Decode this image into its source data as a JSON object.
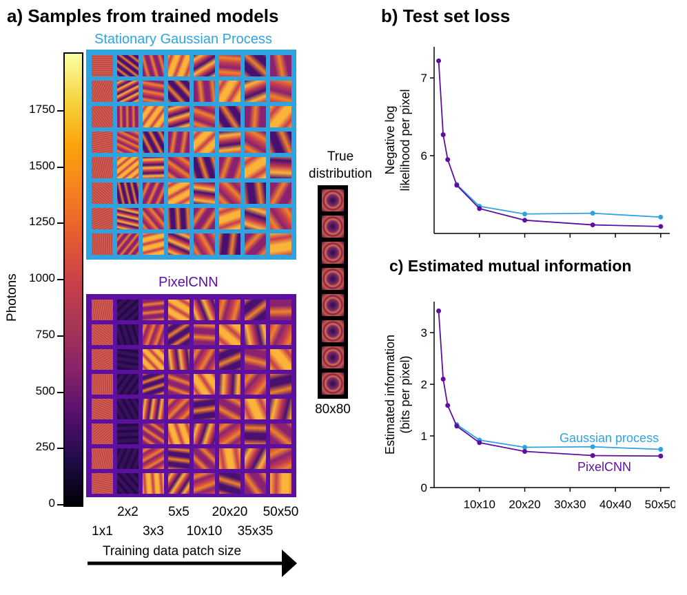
{
  "panel_a": {
    "title": "a) Samples from trained models",
    "colorbar": {
      "label": "Photons",
      "ticks": [
        "0",
        "250",
        "500",
        "750",
        "1000",
        "1250",
        "1500",
        "1750"
      ],
      "tick_values": [
        0,
        250,
        500,
        750,
        1000,
        1250,
        1500,
        1750
      ],
      "max": 2000
    },
    "gp_label": "Stationary Gaussian Process",
    "pixelcnn_label": "PixelCNN",
    "true_dist_label_1": "True",
    "true_dist_label_2": "distribution",
    "true_dist_size": "80x80",
    "patch_labels_top": [
      "2x2",
      "5x5",
      "20x20",
      "50x50"
    ],
    "patch_labels_bottom": [
      "1x1",
      "3x3",
      "10x10",
      "35x35"
    ],
    "axis_label": "Training data patch size",
    "colors": {
      "gp": "#2ea3e0",
      "pixelcnn": "#5c0fa0"
    }
  },
  "panel_b": {
    "title": "b) Test set loss"
  },
  "panel_c": {
    "title": "c) Estimated mutual information"
  },
  "chart_data": [
    {
      "type": "line",
      "title": "b) Test set loss",
      "xlabel": "",
      "ylabel_lines": [
        "Negative log",
        "likelihood per pixel"
      ],
      "x": [
        1,
        2,
        3,
        5,
        10,
        20,
        35,
        50
      ],
      "xlim": [
        0,
        52
      ],
      "ylim": [
        5.0,
        7.4
      ],
      "y_ticks": [
        6,
        7
      ],
      "series": [
        {
          "name": "Gaussian process",
          "color": "#2ea3e0",
          "x": [
            5,
            10,
            20,
            35,
            50
          ],
          "values": [
            5.63,
            5.35,
            5.25,
            5.26,
            5.21
          ]
        },
        {
          "name": "PixelCNN",
          "color": "#5c0fa0",
          "x": [
            1,
            2,
            3,
            5,
            10,
            20,
            35,
            50
          ],
          "values": [
            7.22,
            6.27,
            5.95,
            5.62,
            5.32,
            5.17,
            5.11,
            5.09
          ]
        }
      ]
    },
    {
      "type": "line",
      "title": "c) Estimated mutual information",
      "xlabel": "Patch size",
      "ylabel_lines": [
        "Estimated information",
        "(bits per pixel)"
      ],
      "x": [
        1,
        2,
        3,
        5,
        10,
        20,
        35,
        50
      ],
      "xlim": [
        0,
        52
      ],
      "ylim": [
        0,
        3.6
      ],
      "y_ticks": [
        0,
        1,
        2,
        3
      ],
      "x_ticks": [
        10,
        20,
        30,
        40,
        50
      ],
      "x_tick_labels": [
        "10x10",
        "20x20",
        "30x30",
        "40x40",
        "50x50"
      ],
      "series": [
        {
          "name": "Gaussian process",
          "color": "#2ea3e0",
          "x": [
            5,
            10,
            20,
            35,
            50
          ],
          "values": [
            1.22,
            0.92,
            0.78,
            0.79,
            0.74
          ]
        },
        {
          "name": "PixelCNN",
          "color": "#5c0fa0",
          "x": [
            1,
            2,
            3,
            5,
            10,
            20,
            35,
            50
          ],
          "values": [
            3.42,
            2.1,
            1.59,
            1.19,
            0.87,
            0.7,
            0.62,
            0.61
          ]
        }
      ]
    }
  ]
}
